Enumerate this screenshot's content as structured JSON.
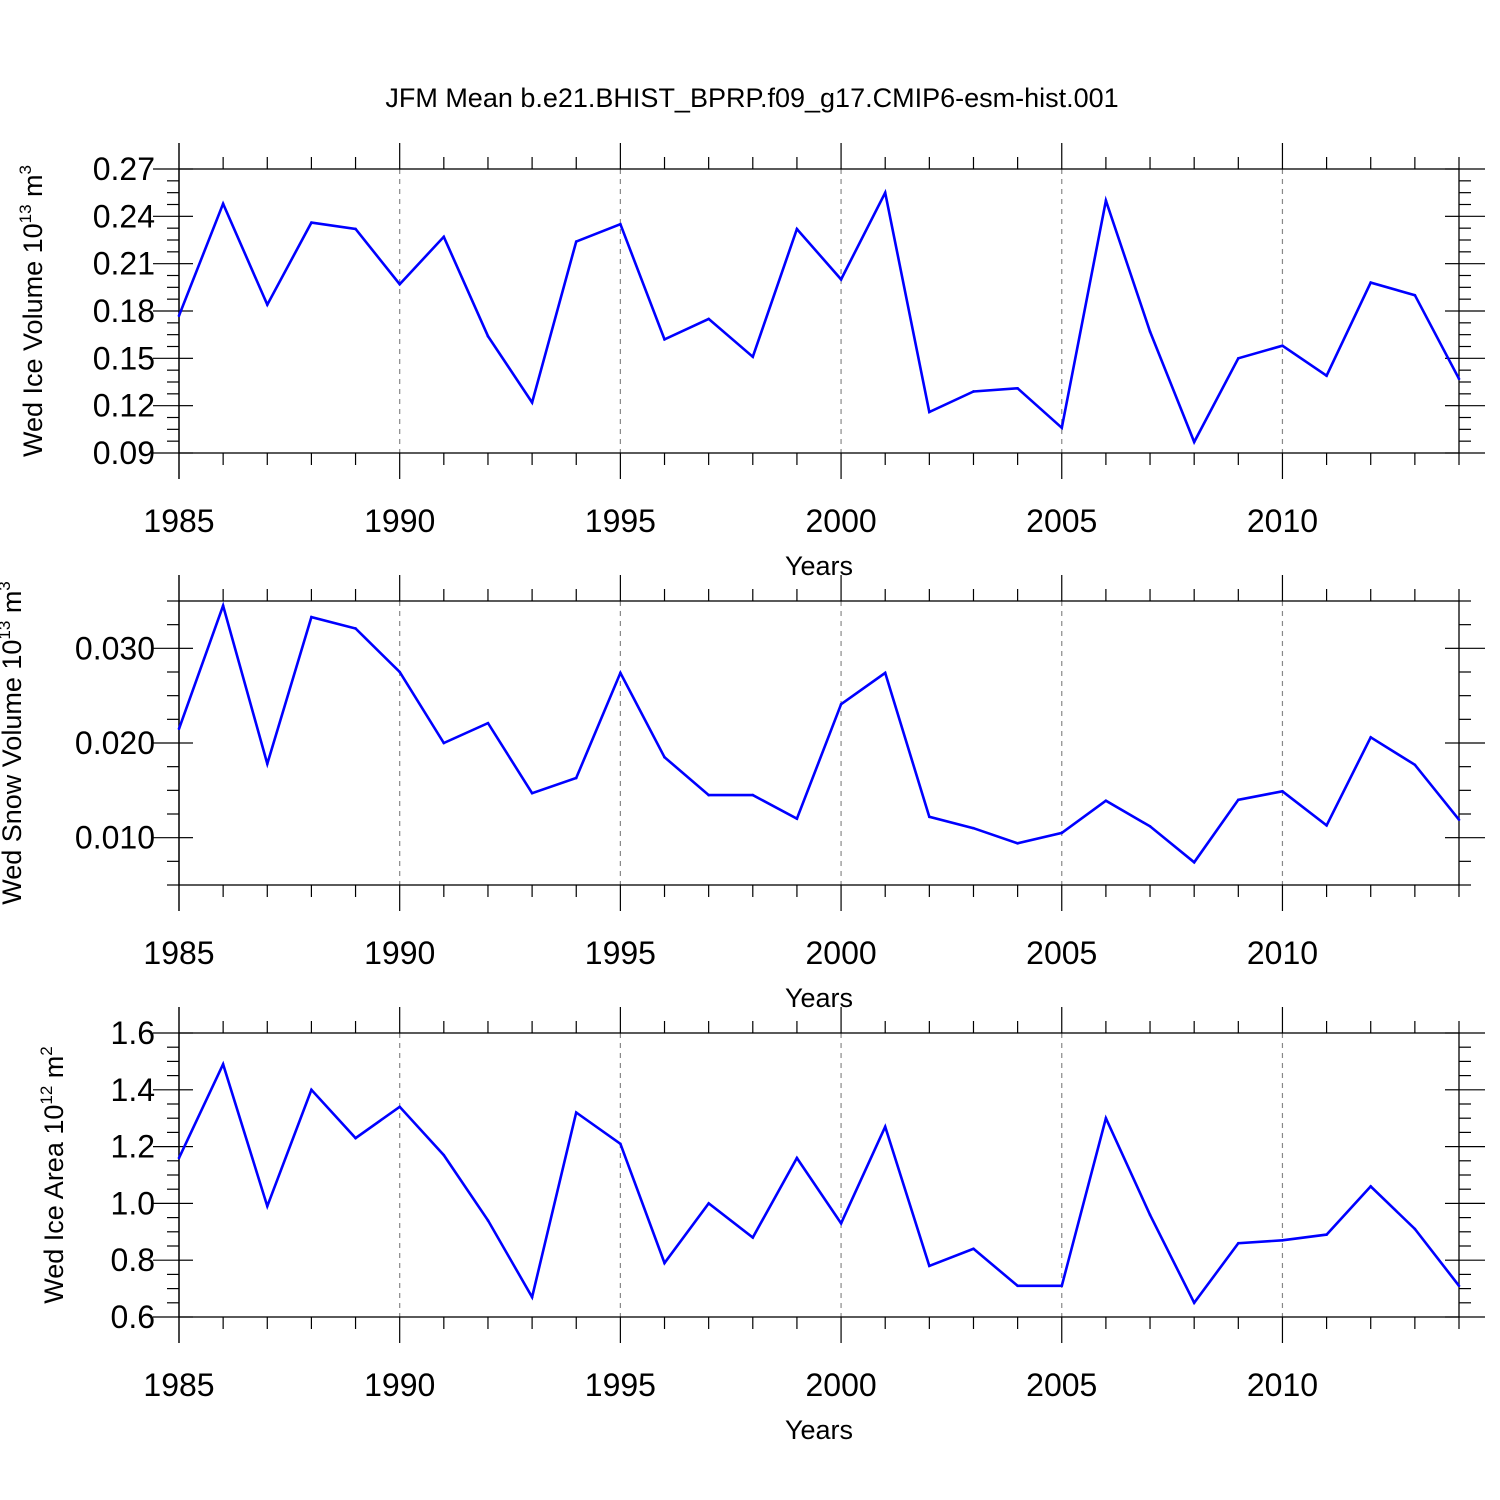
{
  "title": "JFM Mean b.e21.BHIST_BPRP.f09_g17.CMIP6-esm-hist.001",
  "colors": {
    "line": "#0000ff",
    "axis": "#000000",
    "grid": "#888888"
  },
  "chart_data": [
    {
      "type": "line",
      "title": "JFM Mean b.e21.BHIST_BPRP.f09_g17.CMIP6-esm-hist.001",
      "xlabel": "Years",
      "ylabel": {
        "main": "Wed Ice Volume 10",
        "exp": "13",
        "unit": " m",
        "unitexp": "3"
      },
      "xlim": [
        1985,
        2014
      ],
      "ylim": [
        0.09,
        0.27
      ],
      "xticks": [
        1985,
        1990,
        1995,
        2000,
        2005,
        2010
      ],
      "xtick_labels": [
        "1985",
        "1990",
        "1995",
        "2000",
        "2005",
        "2010"
      ],
      "yticks": [
        0.09,
        0.12,
        0.15,
        0.18,
        0.21,
        0.24,
        0.27
      ],
      "ytick_labels": [
        "0.09",
        "0.12",
        "0.15",
        "0.18",
        "0.21",
        "0.24",
        "0.27"
      ],
      "grid": "vertical dashed at major x ticks",
      "series": [
        {
          "name": "Wed Ice Volume",
          "x": [
            1985,
            1986,
            1987,
            1988,
            1989,
            1990,
            1991,
            1992,
            1993,
            1994,
            1995,
            1996,
            1997,
            1998,
            1999,
            2000,
            2001,
            2002,
            2003,
            2004,
            2005,
            2006,
            2007,
            2008,
            2009,
            2010,
            2011,
            2012,
            2013,
            2014
          ],
          "values": [
            0.177,
            0.248,
            0.184,
            0.236,
            0.232,
            0.197,
            0.227,
            0.164,
            0.122,
            0.224,
            0.235,
            0.162,
            0.175,
            0.151,
            0.232,
            0.2,
            0.255,
            0.116,
            0.129,
            0.131,
            0.106,
            0.25,
            0.167,
            0.097,
            0.15,
            0.158,
            0.139,
            0.198,
            0.19,
            0.137
          ]
        }
      ]
    },
    {
      "type": "line",
      "xlabel": "Years",
      "ylabel": {
        "main": "Wed Snow Volume 10",
        "exp": "13",
        "unit": " m",
        "unitexp": "3"
      },
      "xlim": [
        1985,
        2014
      ],
      "ylim": [
        0.005,
        0.035
      ],
      "xticks": [
        1985,
        1990,
        1995,
        2000,
        2005,
        2010
      ],
      "xtick_labels": [
        "1985",
        "1990",
        "1995",
        "2000",
        "2005",
        "2010"
      ],
      "yticks": [
        0.01,
        0.02,
        0.03
      ],
      "ytick_labels": [
        "0.010",
        "0.020",
        "0.030"
      ],
      "grid": "vertical dashed at major x ticks",
      "series": [
        {
          "name": "Wed Snow Volume",
          "x": [
            1985,
            1986,
            1987,
            1988,
            1989,
            1990,
            1991,
            1992,
            1993,
            1994,
            1995,
            1996,
            1997,
            1998,
            1999,
            2000,
            2001,
            2002,
            2003,
            2004,
            2005,
            2006,
            2007,
            2008,
            2009,
            2010,
            2011,
            2012,
            2013,
            2014
          ],
          "values": [
            0.0215,
            0.0345,
            0.0178,
            0.0333,
            0.0321,
            0.0275,
            0.02,
            0.0221,
            0.0147,
            0.0163,
            0.0274,
            0.0185,
            0.0145,
            0.0145,
            0.012,
            0.0241,
            0.0274,
            0.0122,
            0.011,
            0.0094,
            0.0105,
            0.0139,
            0.0112,
            0.0074,
            0.014,
            0.0149,
            0.0113,
            0.0206,
            0.0177,
            0.0119
          ]
        }
      ]
    },
    {
      "type": "line",
      "xlabel": "Years",
      "ylabel": {
        "main": "Wed Ice Area 10",
        "exp": "12",
        "unit": " m",
        "unitexp": "2"
      },
      "xlim": [
        1985,
        2014
      ],
      "ylim": [
        0.6,
        1.6
      ],
      "xticks": [
        1985,
        1990,
        1995,
        2000,
        2005,
        2010
      ],
      "xtick_labels": [
        "1985",
        "1990",
        "1995",
        "2000",
        "2005",
        "2010"
      ],
      "yticks": [
        0.6,
        0.8,
        1.0,
        1.2,
        1.4,
        1.6
      ],
      "ytick_labels": [
        "0.6",
        "0.8",
        "1.0",
        "1.2",
        "1.4",
        "1.6"
      ],
      "grid": "vertical dashed at major x ticks",
      "series": [
        {
          "name": "Wed Ice Area",
          "x": [
            1985,
            1986,
            1987,
            1988,
            1989,
            1990,
            1991,
            1992,
            1993,
            1994,
            1995,
            1996,
            1997,
            1998,
            1999,
            2000,
            2001,
            2002,
            2003,
            2004,
            2005,
            2006,
            2007,
            2008,
            2009,
            2010,
            2011,
            2012,
            2013,
            2014
          ],
          "values": [
            1.16,
            1.49,
            0.99,
            1.4,
            1.23,
            1.34,
            1.17,
            0.94,
            0.67,
            1.32,
            1.21,
            0.79,
            1.0,
            0.88,
            1.16,
            0.93,
            1.27,
            0.78,
            0.84,
            0.71,
            0.71,
            1.3,
            0.96,
            0.65,
            0.86,
            0.87,
            0.89,
            1.06,
            0.91,
            0.71
          ]
        }
      ]
    }
  ]
}
